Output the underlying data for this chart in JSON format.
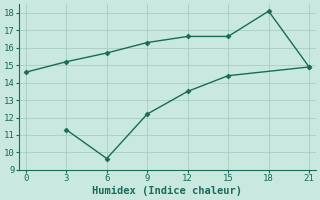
{
  "line1_x": [
    0,
    3,
    6,
    9,
    12,
    15,
    18,
    21
  ],
  "line1_y": [
    14.6,
    15.2,
    15.7,
    16.3,
    16.65,
    16.65,
    18.1,
    14.9
  ],
  "line2_x": [
    3,
    6,
    9,
    12,
    15,
    21
  ],
  "line2_y": [
    11.3,
    9.65,
    12.2,
    13.5,
    14.4,
    14.9
  ],
  "line_color": "#1a6b5a",
  "bg_color": "#c8e8e0",
  "grid_color": "#a8ccc4",
  "xlabel": "Humidex (Indice chaleur)",
  "xlim": [
    -0.5,
    21.5
  ],
  "ylim": [
    9,
    18.5
  ],
  "xticks": [
    0,
    3,
    6,
    9,
    12,
    15,
    18,
    21
  ],
  "yticks": [
    9,
    10,
    11,
    12,
    13,
    14,
    15,
    16,
    17,
    18
  ],
  "marker": "D",
  "markersize": 2.5,
  "linewidth": 1.0,
  "tick_fontsize": 6.5,
  "xlabel_fontsize": 7.5
}
